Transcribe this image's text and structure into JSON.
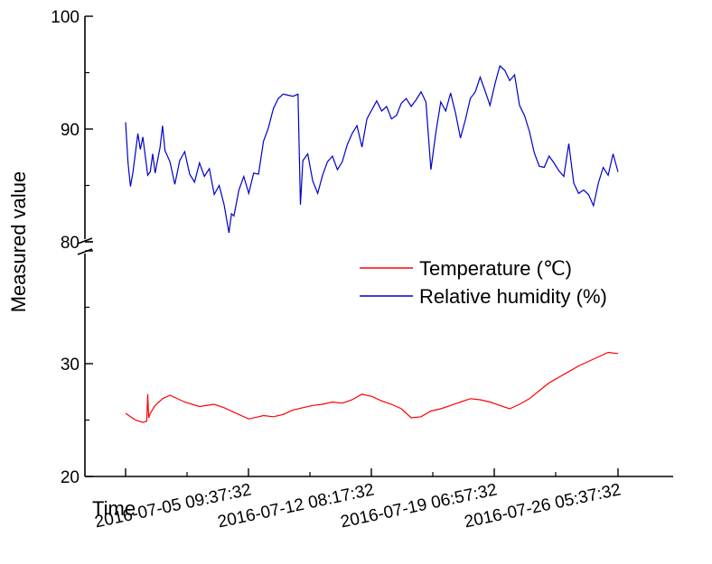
{
  "chart_data": {
    "type": "line",
    "title": "",
    "xlabel": "Time",
    "ylabel": "Measured value",
    "x_ticks": [
      "2016-07-05 09:37:32",
      "2016-07-12 08:17:32",
      "2016-07-19 06:57:32",
      "2016-07-26 05:37:32"
    ],
    "y_ticks_upper": [
      "80",
      "90",
      "100"
    ],
    "y_ticks_lower": [
      "20",
      "30"
    ],
    "ylim_upper": [
      80,
      100
    ],
    "ylim_lower": [
      20,
      40
    ],
    "y_axis_break": "40-80",
    "grid": false,
    "legend_position": "right",
    "series": [
      {
        "name": "Temperature (℃)",
        "color": "#ff0000",
        "x": [
          0,
          0.01,
          0.02,
          0.035,
          0.043,
          0.045,
          0.047,
          0.05,
          0.06,
          0.075,
          0.09,
          0.1,
          0.12,
          0.15,
          0.18,
          0.2,
          0.22,
          0.25,
          0.27,
          0.28,
          0.3,
          0.32,
          0.34,
          0.36,
          0.38,
          0.4,
          0.42,
          0.44,
          0.46,
          0.48,
          0.5,
          0.52,
          0.54,
          0.56,
          0.58,
          0.6,
          0.62,
          0.64,
          0.66,
          0.68,
          0.7,
          0.72,
          0.74,
          0.76,
          0.78,
          0.8,
          0.82,
          0.84,
          0.86,
          0.88,
          0.9,
          0.92,
          0.94,
          0.96,
          0.98,
          1.0
        ],
        "values": [
          25.6,
          25.3,
          25.0,
          24.8,
          24.9,
          27.3,
          25.2,
          25.6,
          26.3,
          26.9,
          27.2,
          27.0,
          26.6,
          26.2,
          26.4,
          26.1,
          25.7,
          25.1,
          25.3,
          25.4,
          25.3,
          25.5,
          25.9,
          26.1,
          26.3,
          26.4,
          26.6,
          26.5,
          26.8,
          27.3,
          27.1,
          26.7,
          26.4,
          26.0,
          25.2,
          25.3,
          25.8,
          26.0,
          26.3,
          26.6,
          26.9,
          26.8,
          26.6,
          26.3,
          26.0,
          26.4,
          26.9,
          27.6,
          28.3,
          28.8,
          29.3,
          29.8,
          30.2,
          30.6,
          31.0,
          30.9
        ]
      },
      {
        "name": "Relative humidity (%)",
        "color": "#0000cc",
        "x": [
          0,
          0.005,
          0.01,
          0.015,
          0.025,
          0.03,
          0.035,
          0.04,
          0.045,
          0.05,
          0.055,
          0.06,
          0.07,
          0.075,
          0.08,
          0.09,
          0.1,
          0.11,
          0.12,
          0.13,
          0.14,
          0.15,
          0.16,
          0.17,
          0.18,
          0.19,
          0.2,
          0.21,
          0.215,
          0.22,
          0.23,
          0.24,
          0.25,
          0.26,
          0.27,
          0.28,
          0.29,
          0.3,
          0.31,
          0.32,
          0.33,
          0.34,
          0.35,
          0.355,
          0.36,
          0.37,
          0.38,
          0.39,
          0.4,
          0.41,
          0.42,
          0.43,
          0.44,
          0.45,
          0.46,
          0.47,
          0.48,
          0.49,
          0.5,
          0.51,
          0.52,
          0.53,
          0.54,
          0.55,
          0.56,
          0.57,
          0.58,
          0.59,
          0.6,
          0.61,
          0.62,
          0.63,
          0.64,
          0.65,
          0.66,
          0.67,
          0.68,
          0.69,
          0.7,
          0.71,
          0.72,
          0.73,
          0.74,
          0.75,
          0.76,
          0.77,
          0.78,
          0.79,
          0.8,
          0.81,
          0.82,
          0.83,
          0.84,
          0.85,
          0.86,
          0.87,
          0.88,
          0.89,
          0.9,
          0.91,
          0.92,
          0.93,
          0.94,
          0.95,
          0.96,
          0.97,
          0.98,
          0.99,
          1.0
        ],
        "values": [
          90.6,
          87.0,
          84.9,
          86.2,
          89.6,
          88.2,
          89.3,
          87.6,
          85.9,
          86.2,
          87.8,
          86.1,
          88.4,
          90.3,
          88.1,
          87.1,
          85.1,
          87.2,
          88.0,
          86.0,
          85.3,
          87.0,
          85.8,
          86.5,
          84.2,
          85.0,
          83.3,
          80.8,
          82.5,
          82.3,
          84.6,
          85.8,
          84.3,
          86.1,
          86.0,
          88.9,
          90.1,
          91.8,
          92.7,
          93.1,
          93.0,
          92.9,
          93.1,
          83.3,
          87.2,
          87.8,
          85.4,
          84.3,
          85.9,
          87.1,
          87.6,
          86.4,
          87.1,
          88.6,
          89.6,
          90.3,
          88.4,
          90.9,
          91.7,
          92.5,
          91.6,
          92.0,
          90.9,
          91.2,
          92.3,
          92.7,
          92.0,
          92.6,
          93.3,
          92.4,
          86.4,
          89.7,
          92.4,
          91.6,
          93.2,
          91.4,
          89.2,
          90.8,
          92.7,
          93.3,
          94.6,
          93.4,
          92.1,
          94.0,
          95.6,
          95.2,
          94.3,
          94.8,
          92.1,
          91.2,
          89.8,
          87.9,
          86.7,
          86.6,
          87.6,
          87.0,
          86.3,
          85.8,
          88.7,
          85.2,
          84.3,
          84.6,
          84.2,
          83.2,
          85.2,
          86.6,
          85.9,
          87.8,
          86.2
        ]
      }
    ]
  }
}
